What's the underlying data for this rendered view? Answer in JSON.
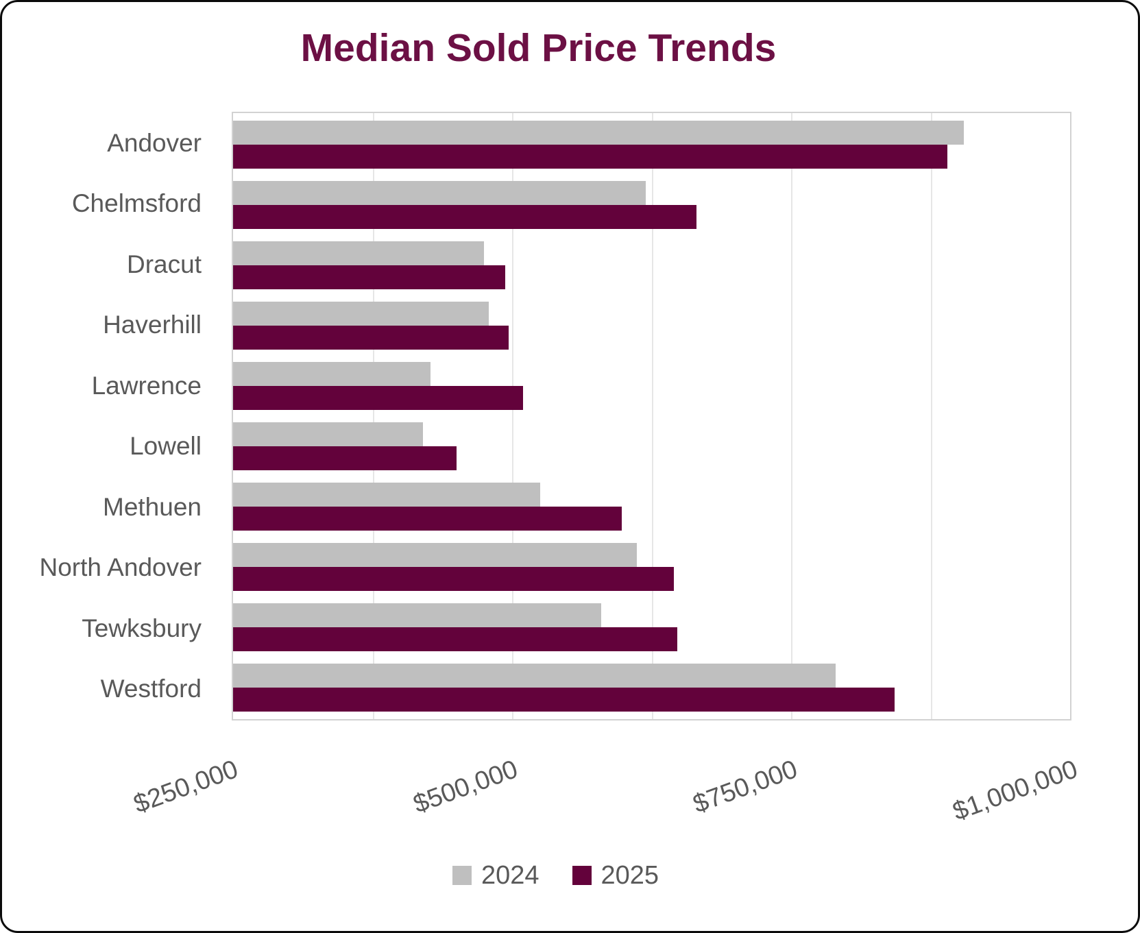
{
  "title": "Median Sold Price Trends",
  "colors": {
    "title_text": "#6C1044",
    "series_2024": "#BFBFBF",
    "series_2025": "#63023B",
    "axis_text": "#595959",
    "gridline": "#E6E6E6",
    "plot_border": "#D2D2D2",
    "frame_border": "#0B0B0B"
  },
  "chart_data": {
    "type": "bar",
    "orientation": "horizontal",
    "title": "Median Sold Price Trends",
    "categories": [
      "Andover",
      "Chelmsford",
      "Dracut",
      "Haverhill",
      "Lawrence",
      "Lowell",
      "Methuen",
      "North Andover",
      "Tewksbury",
      "Westford"
    ],
    "series": [
      {
        "name": "2024",
        "color": "#BFBFBF",
        "values": [
          905000,
          620000,
          475000,
          479000,
          427000,
          420000,
          525000,
          612000,
          580000,
          790000
        ]
      },
      {
        "name": "2025",
        "color": "#63023B",
        "values": [
          890000,
          665000,
          494000,
          497000,
          510000,
          450000,
          598000,
          645000,
          648000,
          843000
        ]
      }
    ],
    "xlabel": "",
    "ylabel": "",
    "xlim": [
      250000,
      1000000
    ],
    "x_tick_values": [
      250000,
      500000,
      750000,
      1000000
    ],
    "x_tick_labels": [
      "$250,000",
      "$500,000",
      "$750,000",
      "$1,000,000"
    ],
    "minor_gridline_interval": 125000,
    "grid": true,
    "legend_position": "bottom"
  },
  "legend": {
    "items": [
      {
        "label": "2024",
        "color": "#BFBFBF"
      },
      {
        "label": "2025",
        "color": "#63023B"
      }
    ]
  }
}
